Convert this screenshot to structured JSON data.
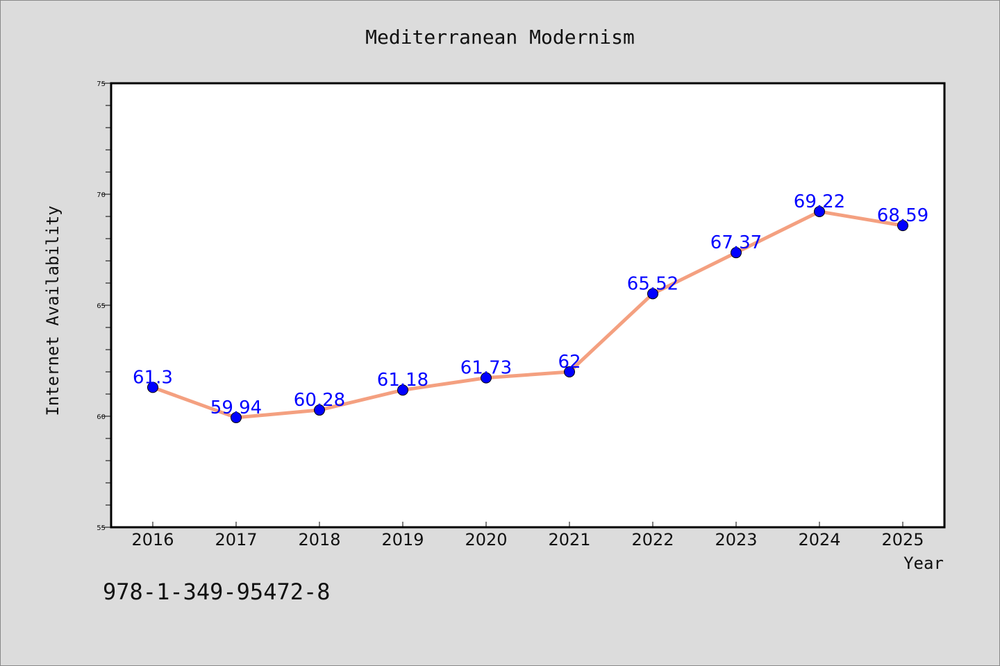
{
  "chart_data": {
    "type": "line",
    "title": "Mediterranean Modernism",
    "xlabel": "Year",
    "ylabel": "Internet Availability",
    "categories": [
      "2016",
      "2017",
      "2018",
      "2019",
      "2020",
      "2021",
      "2022",
      "2023",
      "2024",
      "2025"
    ],
    "series": [
      {
        "values": [
          61.3,
          59.94,
          60.28,
          61.18,
          61.73,
          62,
          65.52,
          67.37,
          69.22,
          68.59
        ],
        "labels": [
          "61.3",
          "59.94",
          "60.28",
          "61.18",
          "61.73",
          "62",
          "65.52",
          "67.37",
          "69.22",
          "68.59"
        ]
      }
    ],
    "ylim": [
      55,
      75
    ],
    "yticks": [
      "55",
      "60",
      "65",
      "70",
      "75"
    ],
    "grid": false,
    "legend": "none",
    "colors": {
      "line": "#f4a080",
      "marker": "#0000ff",
      "data_label": "#0000ff",
      "background": "#dcdcdc",
      "plot_background": "#ffffff"
    }
  },
  "footer": {
    "isbn": "978-1-349-95472-8"
  }
}
